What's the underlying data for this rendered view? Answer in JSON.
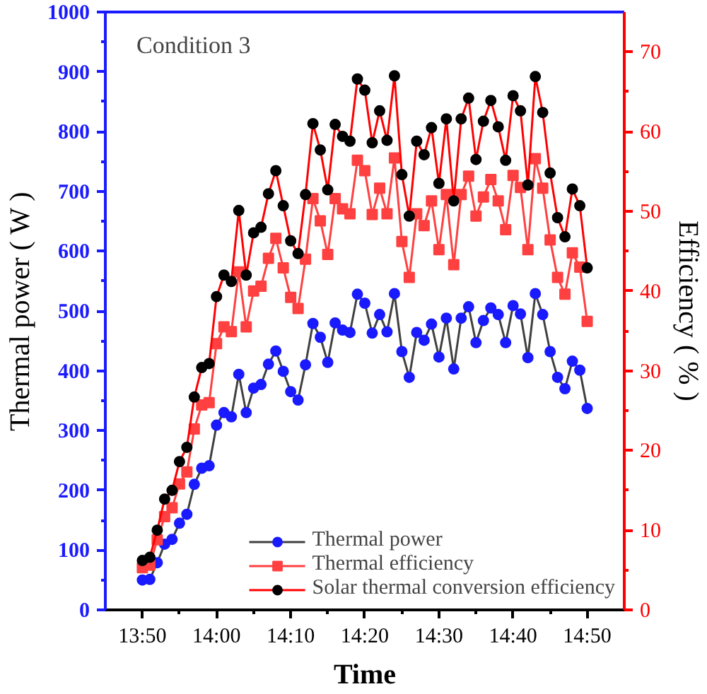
{
  "chart_data": {
    "type": "line",
    "xlabel": "Time",
    "ylabel": "Thermal power ( W )",
    "y2label": "Efficiency ( % )",
    "annotations": [
      "Condition 3"
    ],
    "x": [
      13.8333,
      13.85,
      13.8667,
      13.8833,
      13.9,
      13.9167,
      13.9333,
      13.95,
      13.9667,
      13.9833,
      14,
      14.0167,
      14.0333,
      14.05,
      14.0667,
      14.0833,
      14.1,
      14.1167,
      14.1333,
      14.15,
      14.1667,
      14.1833,
      14.2,
      14.2167,
      14.2333,
      14.25,
      14.2667,
      14.2833,
      14.3,
      14.3167,
      14.3333,
      14.35,
      14.3667,
      14.3833,
      14.4,
      14.4167,
      14.4333,
      14.45,
      14.4667,
      14.4833,
      14.5,
      14.5167,
      14.5333,
      14.55,
      14.5667,
      14.5833,
      14.6,
      14.6167,
      14.6333,
      14.65,
      14.6667,
      14.6833,
      14.7,
      14.7167,
      14.7333,
      14.75,
      14.7667,
      14.7833,
      14.8,
      14.8167,
      14.8333
    ],
    "series": [
      {
        "name": "Thermal power",
        "color": "#404040",
        "colors": [
          "#1a1aff",
          "#1a1aff",
          "#1a1aff",
          "#1a1aff",
          "#1a1aff",
          "#1a1aff",
          "#1a1aff",
          "#1a1aff",
          "#1a1aff",
          "#1a1aff",
          "#1a1aff",
          "#1a1aff",
          "#1a1aff",
          "#1a1aff",
          "#1a1aff",
          "#1a1aff",
          "#1a1aff",
          "#1a1aff",
          "#1a1aff",
          "#1a1aff",
          "#1a1aff",
          "#1a1aff",
          "#1a1aff",
          "#1a1aff",
          "#1a1aff",
          "#1a1aff",
          "#1a1aff",
          "#1a1aff",
          "#1a1aff",
          "#1a1aff",
          "#1a1aff",
          "#1a1aff",
          "#1a1aff",
          "#1a1aff",
          "#1a1aff",
          "#1a1aff",
          "#1a1aff",
          "#1a1aff",
          "#1a1aff",
          "#1a1aff",
          "#1a1aff",
          "#1a1aff",
          "#1a1aff",
          "#1a1aff",
          "#1a1aff",
          "#1a1aff",
          "#1a1aff",
          "#1a1aff",
          "#1a1aff",
          "#1a1aff",
          "#1a1aff",
          "#1a1aff",
          "#1a1aff",
          "#1a1aff",
          "#1a1aff",
          "#1a1aff",
          "#1a1aff",
          "#1a1aff",
          "#1a1aff",
          "#1a1aff",
          "#1a1aff"
        ],
        "marker": "circle",
        "values": [
          50,
          51,
          79,
          110,
          118,
          145,
          160,
          210,
          237,
          241,
          309,
          330,
          323,
          394,
          330,
          371,
          377,
          411,
          433,
          399,
          365,
          351,
          410,
          479,
          456,
          414,
          480,
          468,
          464,
          528,
          513,
          463,
          494,
          465,
          529,
          432,
          389,
          464,
          451,
          478,
          423,
          488,
          403,
          488,
          507,
          447,
          484,
          505,
          494,
          447,
          509,
          495,
          422,
          529,
          494,
          432,
          389,
          370,
          416,
          401,
          337
        ]
      },
      {
        "name": "Thermal efficiency",
        "color": "#ff4040",
        "marker": "square",
        "axis": "y2",
        "values": [
          5.3,
          5.6,
          8.8,
          11.7,
          12.8,
          15.8,
          17.3,
          22.7,
          25.7,
          26.0,
          33.4,
          35.5,
          34.9,
          42.4,
          35.5,
          40.0,
          40.6,
          44.1,
          46.6,
          42.9,
          39.2,
          37.8,
          44.0,
          51.6,
          48.8,
          44.6,
          51.6,
          50.3,
          49.7,
          56.4,
          55.1,
          49.6,
          52.9,
          49.7,
          56.7,
          46.2,
          41.7,
          49.7,
          48.2,
          51.3,
          45.2,
          52.1,
          43.3,
          52.1,
          54.4,
          49.4,
          51.8,
          54.0,
          51.3,
          47.7,
          54.5,
          53.0,
          45.2,
          56.6,
          52.9,
          46.4,
          41.7,
          39.6,
          44.8,
          43.0,
          36.2
        ]
      },
      {
        "name": "Solar thermal conversion efficiency",
        "color": "#ff0000",
        "colors": [
          "#000000",
          "#000000",
          "#000000",
          "#000000",
          "#000000",
          "#000000",
          "#000000",
          "#000000",
          "#000000",
          "#000000",
          "#000000",
          "#000000",
          "#000000",
          "#000000",
          "#000000",
          "#000000",
          "#000000",
          "#000000",
          "#000000",
          "#000000",
          "#000000",
          "#000000",
          "#000000",
          "#000000",
          "#000000",
          "#000000",
          "#000000",
          "#000000",
          "#000000",
          "#000000",
          "#000000",
          "#000000",
          "#000000",
          "#000000",
          "#000000",
          "#000000",
          "#000000",
          "#000000",
          "#000000",
          "#000000",
          "#000000",
          "#000000",
          "#000000",
          "#000000",
          "#000000",
          "#000000",
          "#000000",
          "#000000",
          "#000000",
          "#000000",
          "#000000",
          "#000000",
          "#000000",
          "#000000",
          "#000000",
          "#000000",
          "#000000",
          "#000000",
          "#000000",
          "#000000",
          "#000000"
        ],
        "marker": "circle",
        "axis": "y2",
        "values": [
          6.2,
          6.6,
          10.0,
          13.9,
          15.0,
          18.6,
          20.4,
          26.7,
          30.4,
          30.9,
          39.3,
          42.0,
          41.2,
          50.1,
          42.0,
          47.3,
          48.0,
          52.2,
          55.1,
          50.7,
          46.3,
          44.7,
          52.1,
          61.0,
          57.7,
          52.7,
          60.9,
          59.4,
          58.8,
          66.6,
          65.2,
          58.6,
          62.6,
          58.9,
          67.0,
          54.6,
          49.4,
          58.8,
          57.1,
          60.5,
          53.5,
          61.6,
          51.3,
          61.6,
          64.2,
          56.5,
          61.3,
          63.9,
          60.6,
          56.4,
          64.5,
          62.6,
          53.3,
          66.9,
          62.4,
          54.8,
          49.2,
          46.8,
          52.8,
          50.7,
          42.9
        ]
      }
    ],
    "xlim": [
      13.75,
      14.9167
    ],
    "xticks": [
      {
        "value": 13.8333,
        "label": "13:50"
      },
      {
        "value": 13.9167,
        "label": null
      },
      {
        "value": 14,
        "label": "14:00"
      },
      {
        "value": 14.0833,
        "label": null
      },
      {
        "value": 14.1667,
        "label": "14:10"
      },
      {
        "value": 14.25,
        "label": null
      },
      {
        "value": 14.3333,
        "label": "14:20"
      },
      {
        "value": 14.4167,
        "label": null
      },
      {
        "value": 14.5,
        "label": "14:30"
      },
      {
        "value": 14.5833,
        "label": null
      },
      {
        "value": 14.6667,
        "label": "14:40"
      },
      {
        "value": 14.75,
        "label": null
      },
      {
        "value": 14.8333,
        "label": "14:50"
      }
    ],
    "ylim": [
      0,
      1000
    ],
    "yticks": [
      0,
      {
        "value": 50,
        "label": null
      },
      100,
      {
        "value": 150,
        "label": null
      },
      200,
      {
        "value": 250,
        "label": null
      },
      300,
      {
        "value": 350,
        "label": null
      },
      400,
      {
        "value": 450,
        "label": null
      },
      500,
      {
        "value": 550,
        "label": null
      },
      600,
      {
        "value": 650,
        "label": null
      },
      700,
      {
        "value": 750,
        "label": null
      },
      800,
      {
        "value": 850,
        "label": null
      },
      900,
      {
        "value": 950,
        "label": null
      },
      1000
    ],
    "y2lim": [
      0,
      75
    ],
    "y2ticks": [
      0,
      {
        "value": 5,
        "label": null
      },
      10,
      {
        "value": 15,
        "label": null
      },
      20,
      {
        "value": 25,
        "label": null
      },
      30,
      {
        "value": 35,
        "label": null
      },
      40,
      {
        "value": 45,
        "label": null
      },
      50,
      {
        "value": 55,
        "label": null
      },
      60,
      {
        "value": 65,
        "label": null
      },
      70
    ],
    "legend": "bottom right",
    "grid": false,
    "line_style": "solid"
  }
}
